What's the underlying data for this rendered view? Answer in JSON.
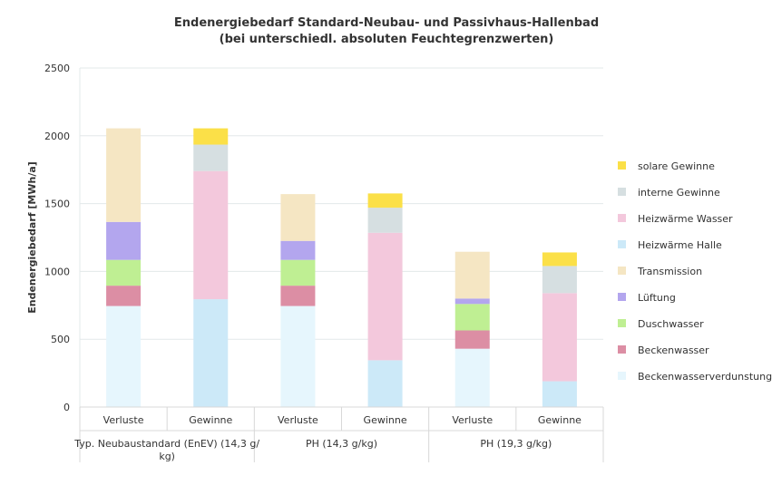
{
  "chart_data": {
    "type": "bar",
    "stacked": true,
    "title": [
      "Endenergiebedarf Standard-Neubau- und  Passivhaus-Hallenbad",
      "(bei unterschiedl. absoluten Feuchtegrenzwerten)"
    ],
    "ylabel": "Endenergiebedarf   [MWh/a]",
    "ylim": [
      0,
      2500
    ],
    "yticks": [
      0,
      500,
      1000,
      1500,
      2000,
      2500
    ],
    "grid": true,
    "legend_position": "right",
    "categories": [
      "Verluste",
      "Gewinne",
      "Verluste",
      "Gewinne",
      "Verluste",
      "Gewinne"
    ],
    "groups": [
      {
        "label_lines": [
          "Typ. Neubaustandard (EnEV) (14,3 g/",
          "kg)"
        ]
      },
      {
        "label_lines": [
          "PH (14,3 g/kg)"
        ]
      },
      {
        "label_lines": [
          "PH (19,3 g/kg)"
        ]
      }
    ],
    "series": [
      {
        "name": "Beckenwasserverdunstung",
        "color": "#e6f6fd",
        "values": [
          745,
          0,
          745,
          0,
          430,
          0
        ]
      },
      {
        "name": "Beckenwasser",
        "color": "#dc8ea4",
        "values": [
          150,
          0,
          150,
          0,
          135,
          0
        ]
      },
      {
        "name": "Duschwasser",
        "color": "#bfef93",
        "values": [
          190,
          0,
          190,
          0,
          195,
          0
        ]
      },
      {
        "name": "Lüftung",
        "color": "#b3a6ee",
        "values": [
          280,
          0,
          140,
          0,
          40,
          0
        ]
      },
      {
        "name": "Transmission",
        "color": "#f5e6c3",
        "values": [
          690,
          0,
          345,
          0,
          345,
          0
        ]
      },
      {
        "name": "Heizwärme Halle",
        "color": "#cce9f8",
        "values": [
          0,
          795,
          0,
          345,
          0,
          190
        ]
      },
      {
        "name": "Heizwärme Wasser",
        "color": "#f3c8dc",
        "values": [
          0,
          945,
          0,
          940,
          0,
          650
        ]
      },
      {
        "name": "interne Gewinne",
        "color": "#d6dfe1",
        "values": [
          0,
          195,
          0,
          185,
          0,
          200
        ]
      },
      {
        "name": "solare Gewinne",
        "color": "#fbe048",
        "values": [
          0,
          120,
          0,
          105,
          0,
          100
        ]
      }
    ]
  }
}
